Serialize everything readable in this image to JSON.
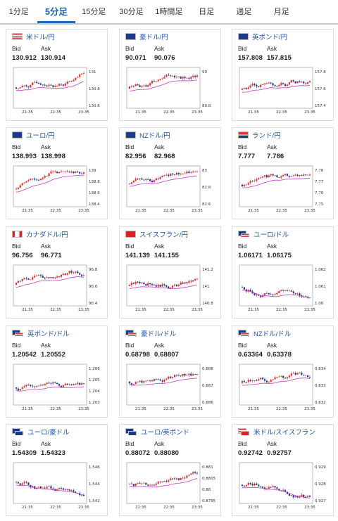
{
  "tabs": [
    "1分足",
    "5分足",
    "15分足",
    "30分足",
    "1時間足",
    "日足",
    "週足",
    "月足"
  ],
  "active_tab": 1,
  "labels": {
    "bid": "Bid",
    "ask": "Ask"
  },
  "colors": {
    "up": "#e8302f",
    "down": "#1f3a86",
    "ma": "#cc33cc"
  },
  "pairs": [
    {
      "name": "米ドル/円",
      "flag": "us-flag",
      "bid": "130.912",
      "ask": "130.914",
      "y_ticks": [
        "131",
        "130.8",
        "130.6"
      ],
      "x_ticks": [
        "21:35",
        "22:35",
        "23:35"
      ]
    },
    {
      "name": "豪ドル/円",
      "flag": "australia-flag",
      "bid": "90.071",
      "ask": "90.076",
      "y_ticks": [
        "90",
        "89.8"
      ],
      "x_ticks": [
        "21:35",
        "22:35",
        "23:35"
      ]
    },
    {
      "name": "英ポンド/円",
      "flag": "uk-flag",
      "bid": "157.808",
      "ask": "157.815",
      "y_ticks": [
        "157.8",
        "157.6",
        "157.4"
      ],
      "x_ticks": [
        "21:35",
        "22:35",
        "23:35"
      ]
    },
    {
      "name": "ユーロ/円",
      "flag": "eu-flag",
      "bid": "138.993",
      "ask": "138.998",
      "y_ticks": [
        "139",
        "138.8",
        "138.6",
        "138.4"
      ],
      "x_ticks": [
        "21:35",
        "22:35",
        "23:35"
      ]
    },
    {
      "name": "NZドル/円",
      "flag": "nz-flag",
      "bid": "82.956",
      "ask": "82.968",
      "y_ticks": [
        "83",
        "82.8",
        "82.6"
      ],
      "x_ticks": [
        "21:35",
        "22:35",
        "23:35"
      ]
    },
    {
      "name": "ランド/円",
      "flag": "south-africa-flag",
      "bid": "7.777",
      "ask": "7.786",
      "y_ticks": [
        "7.78",
        "7.77",
        "7.76",
        "7.75"
      ],
      "x_ticks": [
        "21:35",
        "22:35",
        "23:35"
      ]
    },
    {
      "name": "カナダドル/円",
      "flag": "canada-flag",
      "bid": "96.756",
      "ask": "96.771",
      "y_ticks": [
        "96.8",
        "96.6",
        "96.4"
      ],
      "x_ticks": [
        "21:35",
        "22:35",
        "23:35"
      ]
    },
    {
      "name": "スイスフラン/円",
      "flag": "switzerland-flag",
      "bid": "141.139",
      "ask": "141.155",
      "y_ticks": [
        "141.2",
        "141",
        "140.8"
      ],
      "x_ticks": [
        "21:35",
        "22:35",
        "23:35"
      ]
    },
    {
      "name": "ユーロ/ドル",
      "flag": "eu-us-flag",
      "bid": "1.06171",
      "ask": "1.06175",
      "y_ticks": [
        "1.062",
        "1.061",
        "1.06"
      ],
      "x_ticks": [
        "21:35",
        "22:35",
        "23:35"
      ]
    },
    {
      "name": "英ポンド/ドル",
      "flag": "uk-us-flag",
      "bid": "1.20542",
      "ask": "1.20552",
      "y_ticks": [
        "1.206",
        "1.205",
        "1.204",
        "1.203"
      ],
      "x_ticks": [
        "21:35",
        "22:35",
        "23:35"
      ]
    },
    {
      "name": "豪ドル/ドル",
      "flag": "australia-us-flag",
      "bid": "0.68798",
      "ask": "0.68807",
      "y_ticks": [
        "0.688",
        "0.687",
        "0.686"
      ],
      "x_ticks": [
        "21:35",
        "22:35",
        "23:35"
      ]
    },
    {
      "name": "NZドル/ドル",
      "flag": "nz-us-flag",
      "bid": "0.63364",
      "ask": "0.63378",
      "y_ticks": [
        "0.634",
        "0.633",
        "0.632"
      ],
      "x_ticks": [
        "21:35",
        "22:35",
        "23:35"
      ]
    },
    {
      "name": "ユーロ/豪ドル",
      "flag": "eu-australia-flag",
      "bid": "1.54309",
      "ask": "1.54323",
      "y_ticks": [
        "1.546",
        "1.544",
        "1.542"
      ],
      "x_ticks": [
        "21:35",
        "22:35",
        "23:35"
      ]
    },
    {
      "name": "ユーロ/英ポンド",
      "flag": "eu-uk-flag",
      "bid": "0.88072",
      "ask": "0.88080",
      "y_ticks": [
        "0.881",
        "0.8805",
        "0.88",
        "0.8795"
      ],
      "x_ticks": [
        "21:35",
        "22:35",
        "23:35"
      ]
    },
    {
      "name": "米ドル/スイスフラン",
      "flag": "us-switzerland-flag",
      "bid": "0.92742",
      "ask": "0.92757",
      "y_ticks": [
        "0.929",
        "0.928",
        "0.927"
      ],
      "x_ticks": [
        "21:35",
        "22:35",
        "23:35"
      ]
    }
  ]
}
